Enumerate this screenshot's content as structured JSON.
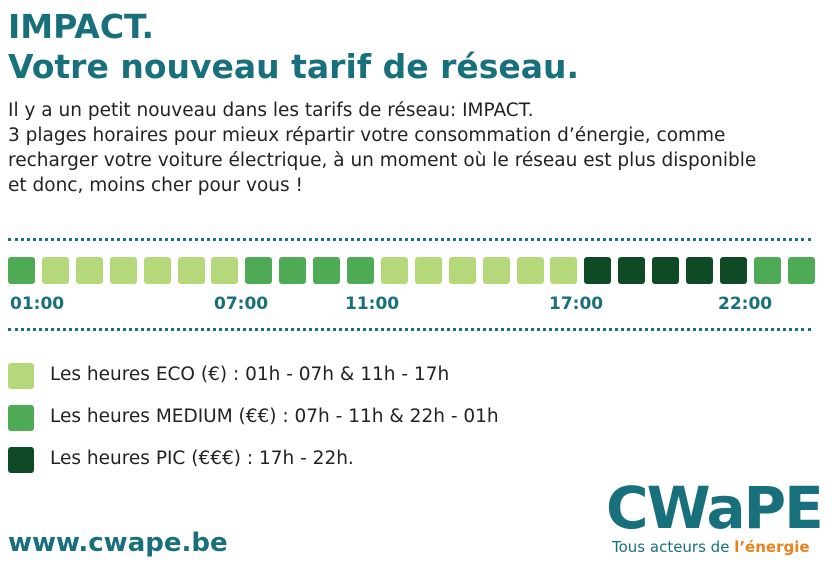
{
  "header": {
    "title_line1": "IMPACT.",
    "title_line2": "Votre nouveau tarif de réseau."
  },
  "intro": [
    "Il y a un petit nouveau dans les tarifs de réseau: IMPACT.",
    "3 plages horaires pour mieux répartir votre consommation d’énergie, comme",
    "recharger votre voiture électrique, à un moment où le réseau est plus disponible",
    "et donc, moins cher pour vous !"
  ],
  "timeline": {
    "slot_colors": [
      "#4eaa55",
      "#b5d97a",
      "#b5d97a",
      "#b5d97a",
      "#b5d97a",
      "#b5d97a",
      "#b5d97a",
      "#4eaa55",
      "#4eaa55",
      "#4eaa55",
      "#4eaa55",
      "#b5d97a",
      "#b5d97a",
      "#b5d97a",
      "#b5d97a",
      "#b5d97a",
      "#b5d97a",
      "#0d4a25",
      "#0d4a25",
      "#0d4a25",
      "#0d4a25",
      "#0d4a25",
      "#4eaa55",
      "#4eaa55"
    ],
    "hour_labels": [
      "01:00",
      "07:00",
      "11:00",
      "17:00",
      "22:00"
    ]
  },
  "legend": [
    {
      "color": "#b5d97a",
      "label": "Les heures ECO (€) : 01h - 07h & 11h - 17h"
    },
    {
      "color": "#4eaa55",
      "label": "Les heures MEDIUM (€€) : 07h - 11h & 22h - 01h"
    },
    {
      "color": "#0d4a25",
      "label": "Les heures PIC (€€€) : 17h - 22h."
    }
  ],
  "footer": {
    "url": "www.cwape.be",
    "logo": "CWaPE",
    "tagline": "Tous acteurs de ",
    "tagline_accent": "l’énergie"
  }
}
